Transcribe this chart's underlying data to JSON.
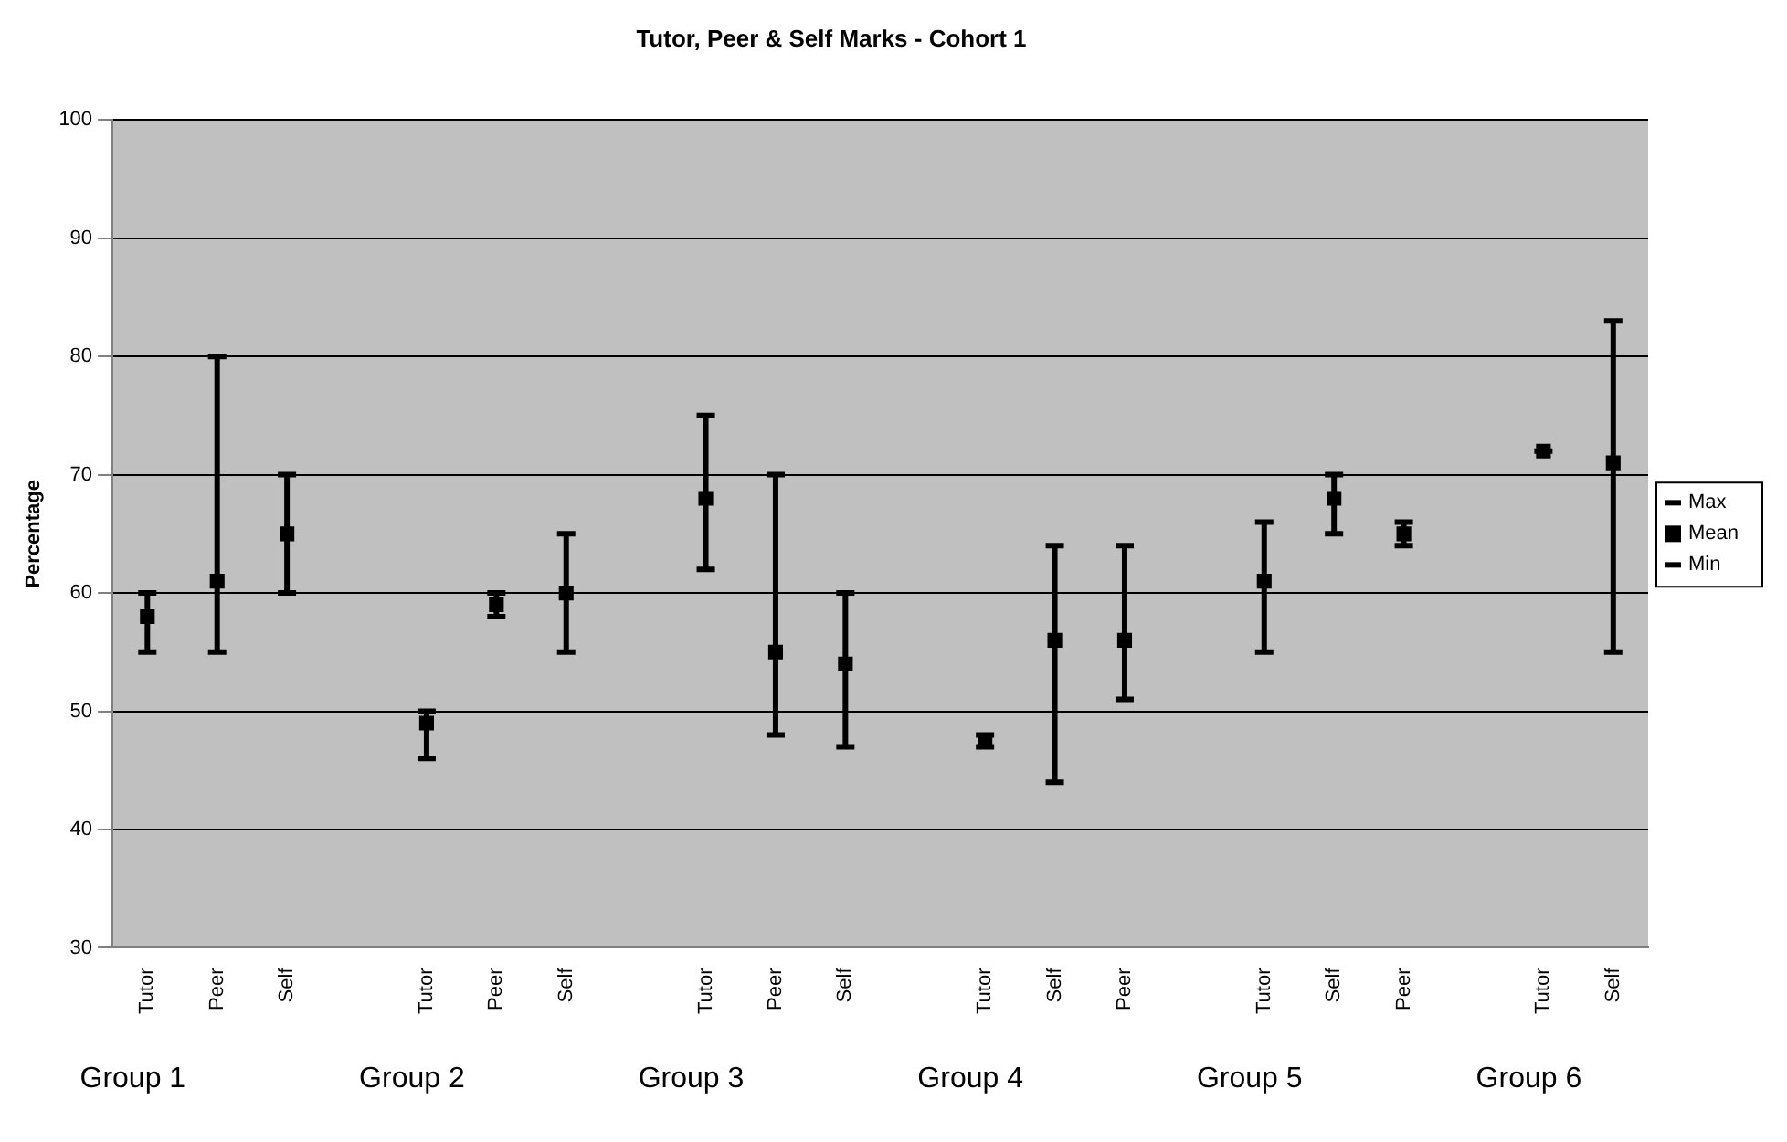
{
  "chart_data": {
    "type": "scatter",
    "title": "Tutor, Peer & Self Marks - Cohort 1",
    "ylabel": "Percentage",
    "categories": [
      "Tutor",
      "Peer",
      "Self",
      null,
      "Tutor",
      "Peer",
      "Self",
      null,
      "Tutor",
      "Peer",
      "Self",
      null,
      "Tutor",
      "Self",
      "Peer",
      null,
      "Tutor",
      "Self",
      "Peer",
      null,
      "Tutor",
      "Self"
    ],
    "series": [
      {
        "name": "Mean",
        "color": "#000000",
        "marker": "square",
        "values": [
          58,
          61,
          65,
          null,
          49,
          59,
          60,
          null,
          68,
          55,
          54,
          null,
          47.5,
          56,
          56,
          null,
          61,
          68,
          65,
          null,
          72,
          71
        ],
        "errors": [
          [
            55,
            60
          ],
          [
            55,
            80
          ],
          [
            60,
            70
          ],
          null,
          [
            46,
            50
          ],
          [
            58,
            60
          ],
          [
            55,
            65
          ],
          null,
          [
            62,
            75
          ],
          [
            48,
            70
          ],
          [
            47,
            60
          ],
          null,
          [
            47,
            48
          ],
          [
            44,
            64
          ],
          [
            51,
            64
          ],
          null,
          [
            55,
            66
          ],
          [
            65,
            70
          ],
          [
            64,
            66
          ],
          null,
          [
            72,
            72
          ],
          [
            55,
            83
          ]
        ]
      }
    ],
    "ylim": [
      30,
      100
    ],
    "yticks": [
      30,
      40,
      50,
      60,
      70,
      80,
      90,
      100
    ],
    "grid": "y",
    "legend": "right",
    "annotations": [
      "Group 1",
      "Group 2",
      "Group 3",
      "Group 4",
      "Group 5",
      "Group 6",
      "Max",
      "Min"
    ]
  }
}
